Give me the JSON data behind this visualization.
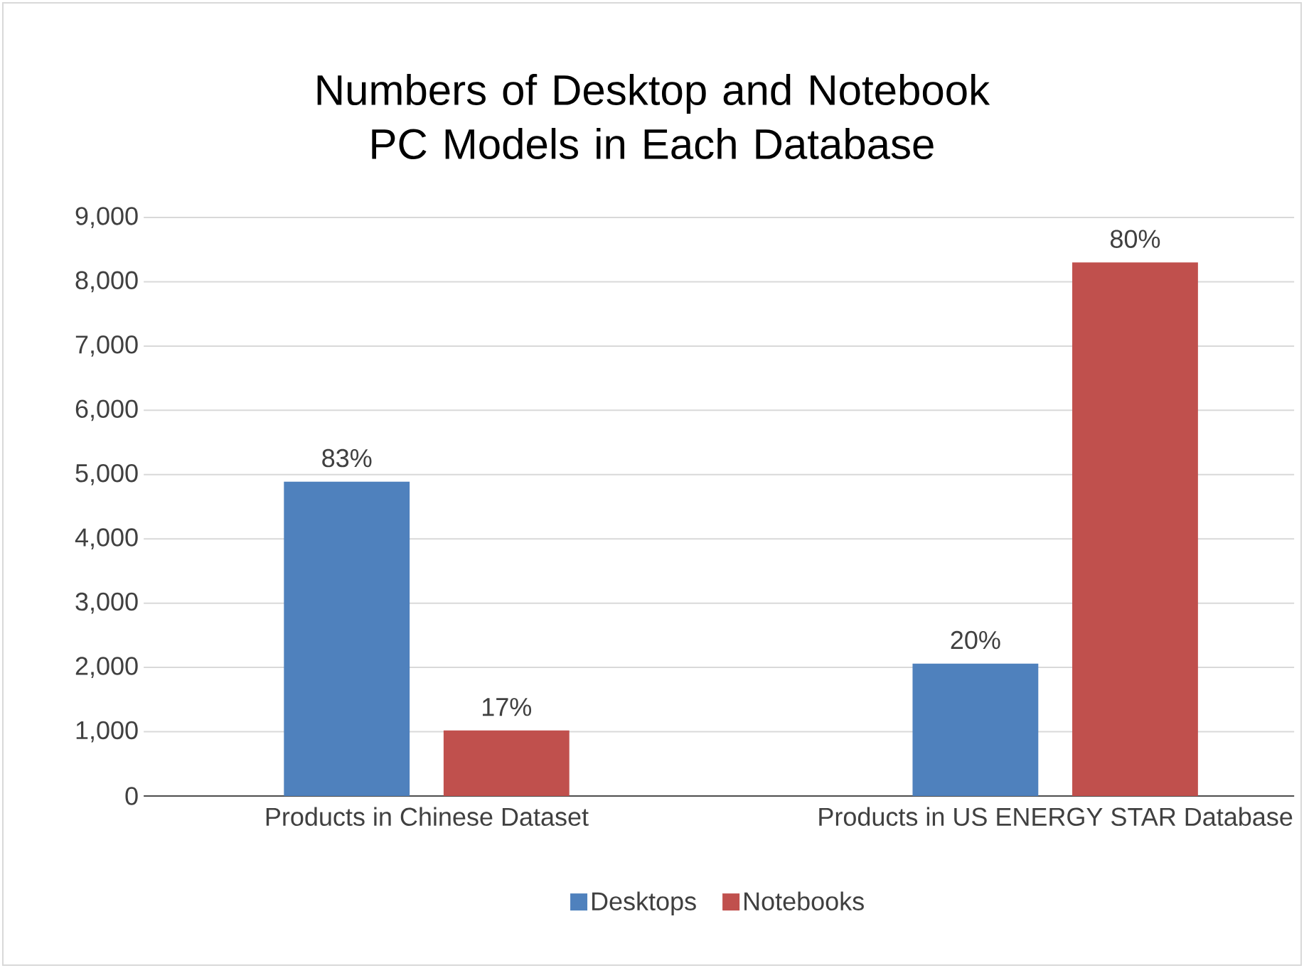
{
  "chart_data": {
    "type": "bar",
    "title": "Numbers of Desktop and Notebook PC Models in Each Database",
    "categories": [
      "Products in Chinese Dataset",
      "Products in US ENERGY STAR Database"
    ],
    "series": [
      {
        "name": "Desktops",
        "color": "#4f81bd",
        "values": [
          4890,
          2060
        ]
      },
      {
        "name": "Notebooks",
        "color": "#c0504d",
        "values": [
          1020,
          8300
        ]
      }
    ],
    "annotations": [
      "83%",
      "20%",
      "17%",
      "80%"
    ],
    "ylim": [
      0,
      9000
    ],
    "yticks": [
      0,
      {
        "value": 1000,
        "label": "1,000"
      },
      {
        "value": 2000,
        "label": "2,000"
      },
      {
        "value": 3000,
        "label": "3,000"
      },
      {
        "value": 4000,
        "label": "4,000"
      },
      {
        "value": 5000,
        "label": "5,000"
      },
      {
        "value": 6000,
        "label": "6,000"
      },
      {
        "value": 7000,
        "label": "7,000"
      },
      {
        "value": 8000,
        "label": "8,000"
      },
      {
        "value": 9000,
        "label": "9,000"
      }
    ],
    "grid": "y",
    "legend": "bottom"
  }
}
